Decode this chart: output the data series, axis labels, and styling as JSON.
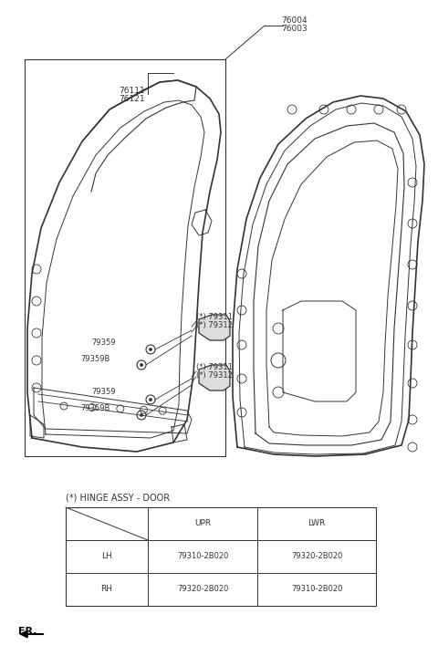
{
  "bg_color": "#ffffff",
  "line_color": "#333333",
  "label_color": "#333333",
  "fig_width": 4.8,
  "fig_height": 7.19,
  "dpi": 100,
  "table_title": "(*) HINGE ASSY - DOOR",
  "col_headers": [
    "UPR",
    "LWR"
  ],
  "row_headers": [
    "LH",
    "RH"
  ],
  "table_data": [
    [
      "79310-2B020",
      "79320-2B020"
    ],
    [
      "79320-2B020",
      "79310-2B020"
    ]
  ]
}
